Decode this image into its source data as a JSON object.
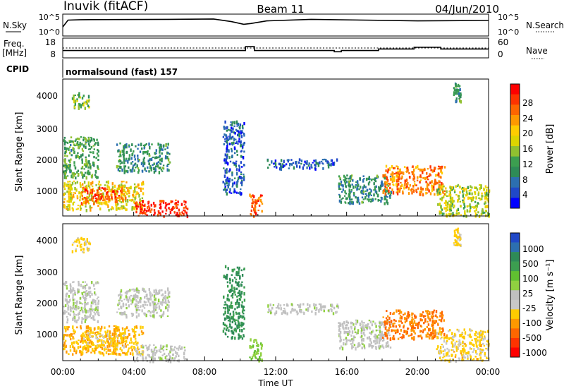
{
  "header": {
    "station": "Inuvik (fitACF)",
    "beam": "Beam 11",
    "date": "04/Jun/2010"
  },
  "top_strip": {
    "left_label": "N.Sky",
    "left_ticks": [
      "10^5",
      "10^0"
    ],
    "right_label": "N.Search",
    "right_ticks": [
      "10^5",
      "10^0"
    ]
  },
  "freq_strip": {
    "left_label_1": "Freq.",
    "left_label_2": "[MHz]",
    "left_ticks": [
      "18",
      "8"
    ],
    "right_label": "Nave",
    "right_ticks": [
      "60",
      "0"
    ]
  },
  "cpid": {
    "label": "CPID",
    "text": "normalsound (fast) 157"
  },
  "x_axis": {
    "label": "Time UT",
    "ticks": [
      "00:00",
      "04:00",
      "08:00",
      "12:00",
      "16:00",
      "20:00",
      "00:00"
    ]
  },
  "panels": {
    "power": {
      "ylabel": "Slant Range [km]",
      "yticks": [
        "4000",
        "3000",
        "2000",
        "1000"
      ],
      "cbar_label": "Power [dB]",
      "cbar_ticks": [
        "28",
        "24",
        "20",
        "16",
        "12",
        "8",
        "4"
      ],
      "cbar_colors": [
        "#ff0000",
        "#ff3300",
        "#ff6600",
        "#ff9900",
        "#ffcc00",
        "#ddd400",
        "#90c030",
        "#3c9e50",
        "#2e8b57",
        "#2c6fb0",
        "#2048c8",
        "#0000ff"
      ]
    },
    "velocity": {
      "ylabel": "Slant Range [km]",
      "yticks": [
        "4000",
        "3000",
        "2000",
        "1000"
      ],
      "cbar_label": "Velocity [m s⁻¹]",
      "cbar_ticks": [
        "1000",
        "500",
        "100",
        "25",
        "-25",
        "-100",
        "-500",
        "-1000"
      ],
      "cbar_colors": [
        "#2048c8",
        "#2c6fb0",
        "#2e8b57",
        "#3c9e50",
        "#60c030",
        "#90d040",
        "#c0c0c0",
        "#c8c8c8",
        "#ffcc00",
        "#ff9900",
        "#ff6600",
        "#ff3300",
        "#ff0000"
      ]
    }
  },
  "chart_data": {
    "type": "heatmap",
    "title": "Inuvik (fitACF)",
    "subtitle": "Beam 11",
    "xlabel": "Time UT",
    "ylabel": "Slant Range [km]",
    "x_range": [
      "00:00",
      "24:00"
    ],
    "ylim": [
      180,
      4500
    ],
    "panels": [
      {
        "name": "Power",
        "units": "dB",
        "color_range": [
          0,
          30
        ],
        "regions": [
          {
            "t0": 0.0,
            "t1": 2.0,
            "r0": 1400,
            "r1": 2700,
            "value": 12
          },
          {
            "t0": 0.0,
            "t1": 4.5,
            "r0": 400,
            "r1": 1300,
            "value": 18
          },
          {
            "t0": 1.0,
            "t1": 3.5,
            "r0": 600,
            "r1": 1100,
            "value": 26
          },
          {
            "t0": 4.0,
            "t1": 7.0,
            "r0": 200,
            "r1": 700,
            "value": 28
          },
          {
            "t0": 0.5,
            "t1": 1.5,
            "r0": 3600,
            "r1": 4100,
            "value": 14
          },
          {
            "t0": 3.0,
            "t1": 6.0,
            "r0": 1600,
            "r1": 2500,
            "value": 10
          },
          {
            "t0": 9.0,
            "t1": 10.2,
            "r0": 900,
            "r1": 3200,
            "value": 6
          },
          {
            "t0": 10.5,
            "t1": 11.2,
            "r0": 200,
            "r1": 900,
            "value": 26
          },
          {
            "t0": 11.5,
            "t1": 15.5,
            "r0": 1700,
            "r1": 2000,
            "value": 6
          },
          {
            "t0": 15.5,
            "t1": 18.5,
            "r0": 600,
            "r1": 1500,
            "value": 10
          },
          {
            "t0": 18.0,
            "t1": 21.5,
            "r0": 900,
            "r1": 1800,
            "value": 24
          },
          {
            "t0": 21.0,
            "t1": 24.0,
            "r0": 200,
            "r1": 1200,
            "value": 16
          },
          {
            "t0": 22.0,
            "t1": 22.4,
            "r0": 3800,
            "r1": 4400,
            "value": 10
          }
        ]
      },
      {
        "name": "Velocity",
        "units": "m s^-1",
        "color_range": [
          -1000,
          1000
        ],
        "regions": [
          {
            "t0": 0.0,
            "t1": 2.0,
            "r0": 1400,
            "r1": 2700,
            "value": 0
          },
          {
            "t0": 0.0,
            "t1": 4.5,
            "r0": 400,
            "r1": 1300,
            "value": -400
          },
          {
            "t0": 1.0,
            "t1": 3.5,
            "r0": 600,
            "r1": 1100,
            "value": -300
          },
          {
            "t0": 4.0,
            "t1": 7.0,
            "r0": 200,
            "r1": 700,
            "value": 0
          },
          {
            "t0": 0.5,
            "t1": 1.5,
            "r0": 3600,
            "r1": 4100,
            "value": -300
          },
          {
            "t0": 3.0,
            "t1": 6.0,
            "r0": 1600,
            "r1": 2500,
            "value": 0
          },
          {
            "t0": 9.0,
            "t1": 10.2,
            "r0": 900,
            "r1": 3200,
            "value": 600
          },
          {
            "t0": 10.5,
            "t1": 11.2,
            "r0": 200,
            "r1": 900,
            "value": 200
          },
          {
            "t0": 11.5,
            "t1": 15.5,
            "r0": 1700,
            "r1": 2000,
            "value": 0
          },
          {
            "t0": 15.5,
            "t1": 18.5,
            "r0": 600,
            "r1": 1500,
            "value": 0
          },
          {
            "t0": 18.0,
            "t1": 21.5,
            "r0": 900,
            "r1": 1800,
            "value": -600
          },
          {
            "t0": 21.0,
            "t1": 24.0,
            "r0": 200,
            "r1": 1200,
            "value": -300
          },
          {
            "t0": 22.0,
            "t1": 22.4,
            "r0": 3800,
            "r1": 4400,
            "value": -300
          }
        ]
      }
    ],
    "noise_sky": [
      [
        0,
        2.0
      ],
      [
        0.3,
        3.8
      ],
      [
        1,
        3.9
      ],
      [
        6,
        4.0
      ],
      [
        8.5,
        4.1
      ],
      [
        9.5,
        3.4
      ],
      [
        10.2,
        2.7
      ],
      [
        10.6,
        2.9
      ],
      [
        11.5,
        3.6
      ],
      [
        14,
        4.0
      ],
      [
        20,
        3.6
      ],
      [
        24,
        3.7
      ]
    ],
    "freq_mhz": [
      [
        0,
        11.5
      ],
      [
        0.25,
        11.5
      ],
      [
        10.3,
        11.5
      ],
      [
        10.3,
        13.8
      ],
      [
        10.8,
        13.8
      ],
      [
        10.8,
        11.5
      ],
      [
        15.3,
        11.5
      ],
      [
        15.3,
        10.8
      ],
      [
        15.7,
        10.8
      ],
      [
        15.7,
        11.5
      ],
      [
        17.8,
        11.5
      ],
      [
        17.8,
        12.4
      ],
      [
        19.8,
        12.4
      ],
      [
        19.8,
        13.4
      ],
      [
        21.3,
        13.4
      ],
      [
        21.3,
        12.4
      ],
      [
        24,
        12.4
      ]
    ]
  }
}
